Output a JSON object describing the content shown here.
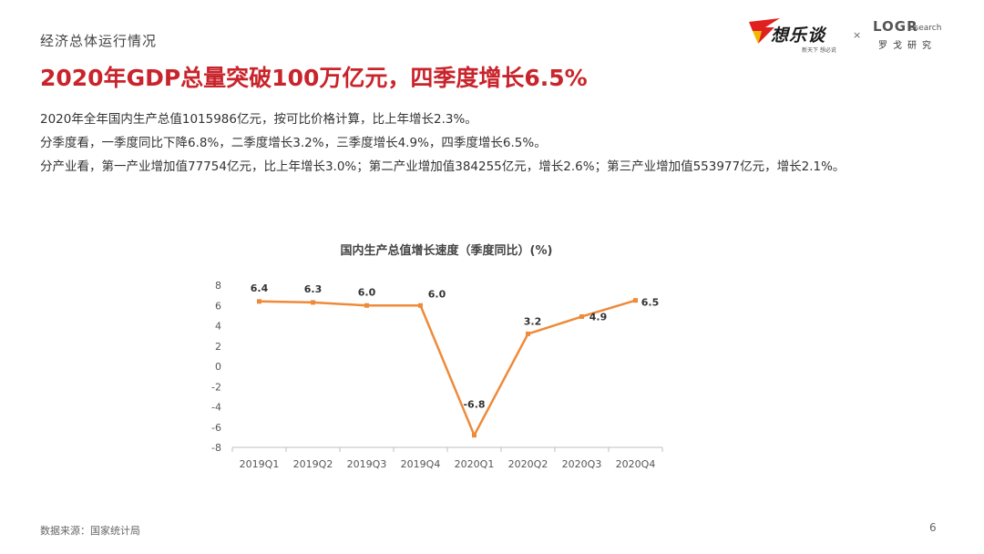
{
  "header": {
    "section": "经济总体运行情况",
    "title": "2020年GDP总量突破100万亿元，四季度增长6.5%"
  },
  "logos": {
    "left_brand": "想乐谈",
    "left_slogan": "新天下 想必说",
    "separator": "×",
    "right_brand": "LOGR",
    "right_brand_suffix": "esearch",
    "right_cn": "罗戈研究"
  },
  "body": {
    "lines": [
      "2020年全年国内生产总值1015986亿元，按可比价格计算，比上年增长2.3%。",
      "分季度看，一季度同比下降6.8%，二季度增长3.2%，三季度增长4.9%，四季度增长6.5%。",
      "分产业看，第一产业增加值77754亿元，比上年增长3.0%；第二产业增加值384255亿元，增长2.6%；第三产业增加值553977亿元，增长2.1%。"
    ]
  },
  "chart_data": {
    "type": "line",
    "title": "国内生产总值增长速度（季度同比）(%)",
    "categories": [
      "2019Q1",
      "2019Q2",
      "2019Q3",
      "2019Q4",
      "2020Q1",
      "2020Q2",
      "2020Q3",
      "2020Q4"
    ],
    "values": [
      6.4,
      6.3,
      6.0,
      6.0,
      -6.8,
      3.2,
      4.9,
      6.5
    ],
    "data_labels": [
      "6.4",
      "6.3",
      "6.0",
      "6.0",
      "-6.8",
      "3.2",
      "4.9",
      "6.5"
    ],
    "ylim": [
      -8,
      8
    ],
    "yticks": [
      "8",
      "6",
      "4",
      "2",
      "0",
      "-2",
      "-4",
      "-6",
      "-8"
    ],
    "grid": false,
    "legend": "none",
    "color": "#ee8a3a"
  },
  "footer": {
    "source": "数据来源：国家统计局",
    "page": "6"
  }
}
